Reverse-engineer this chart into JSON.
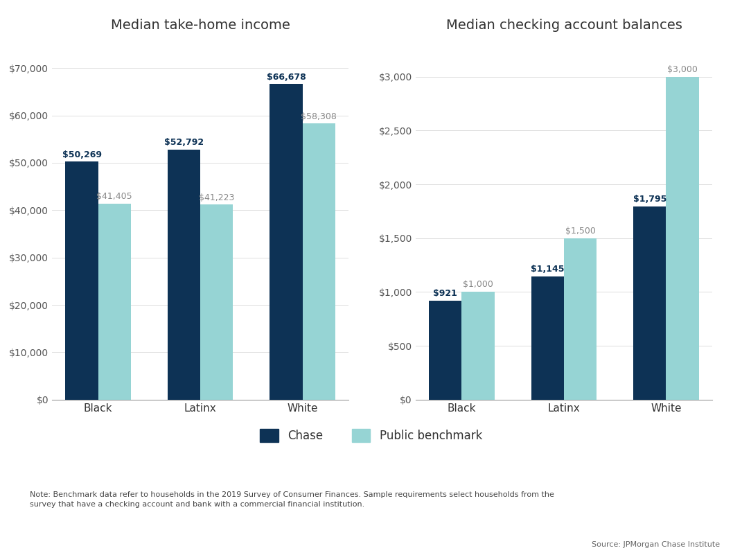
{
  "chart1_title": "Median take-home income",
  "chart2_title": "Median checking account balances",
  "categories": [
    "Black",
    "Latinx",
    "White"
  ],
  "income_chase": [
    50269,
    52792,
    66678
  ],
  "income_benchmark": [
    41405,
    41223,
    58308
  ],
  "balance_chase": [
    921,
    1145,
    1795
  ],
  "balance_benchmark": [
    1000,
    1500,
    3000
  ],
  "chase_color": "#0d3255",
  "benchmark_color": "#96d4d4",
  "background_color": "#ffffff",
  "title_fontsize": 14,
  "label_fontsize": 11,
  "tick_fontsize": 10,
  "bar_width": 0.32,
  "income_ylim": [
    0,
    75000
  ],
  "income_yticks": [
    0,
    10000,
    20000,
    30000,
    40000,
    50000,
    60000,
    70000
  ],
  "balance_ylim": [
    0,
    3300
  ],
  "balance_yticks": [
    0,
    500,
    1000,
    1500,
    2000,
    2500,
    3000
  ],
  "legend_chase": "Chase",
  "legend_benchmark": "Public benchmark",
  "note_text": "Note: Benchmark data refer to households in the 2019 Survey of Consumer Finances. Sample requirements select households from the survey that have a checking account and bank with a commercial financial institution.",
  "source_text": "Source: JPMorgan Chase Institute"
}
